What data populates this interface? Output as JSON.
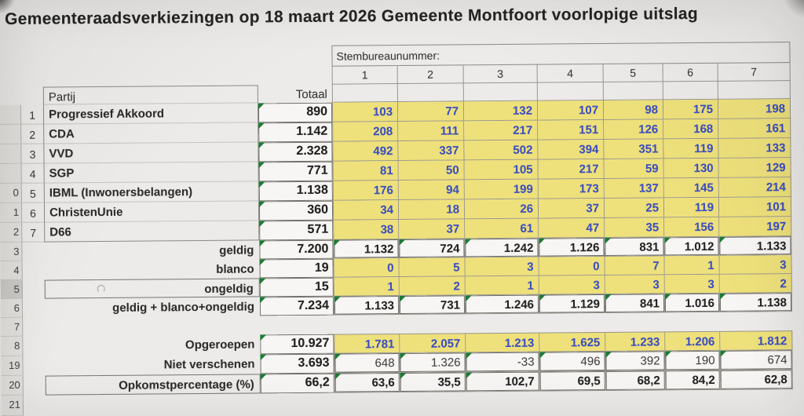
{
  "title": "Gemeenteraadsverkiezingen op 18 maart 2026 Gemeente Montfoort voorlopige uitslag",
  "header": {
    "stations_label": "Stembureaunummer:",
    "station_numbers": [
      "1",
      "2",
      "3",
      "4",
      "5",
      "6",
      "7"
    ],
    "partij": "Partij",
    "totaal": "Totaal"
  },
  "parties": [
    {
      "nr": "1",
      "name": "Progressief Akkoord",
      "totaal": "890",
      "stations": [
        "103",
        "77",
        "132",
        "107",
        "98",
        "175",
        "198"
      ]
    },
    {
      "nr": "2",
      "name": "CDA",
      "totaal": "1.142",
      "stations": [
        "208",
        "111",
        "217",
        "151",
        "126",
        "168",
        "161"
      ]
    },
    {
      "nr": "3",
      "name": "VVD",
      "totaal": "2.328",
      "stations": [
        "492",
        "337",
        "502",
        "394",
        "351",
        "119",
        "133"
      ]
    },
    {
      "nr": "4",
      "name": "SGP",
      "totaal": "771",
      "stations": [
        "81",
        "50",
        "105",
        "217",
        "59",
        "130",
        "129"
      ]
    },
    {
      "nr": "5",
      "name": "IBML (Inwonersbelangen)",
      "totaal": "1.138",
      "stations": [
        "176",
        "94",
        "199",
        "173",
        "137",
        "145",
        "214"
      ]
    },
    {
      "nr": "6",
      "name": "ChristenUnie",
      "totaal": "360",
      "stations": [
        "34",
        "18",
        "26",
        "37",
        "25",
        "119",
        "101"
      ]
    },
    {
      "nr": "7",
      "name": "D66",
      "totaal": "571",
      "stations": [
        "38",
        "37",
        "61",
        "47",
        "35",
        "156",
        "197"
      ]
    }
  ],
  "summary": [
    {
      "label": "geldig",
      "totaal": "7.200",
      "stations": [
        "1.132",
        "724",
        "1.242",
        "1.126",
        "831",
        "1.012",
        "1.133"
      ],
      "style": "white"
    },
    {
      "label": "blanco",
      "totaal": "19",
      "stations": [
        "0",
        "5",
        "3",
        "0",
        "7",
        "1",
        "3"
      ],
      "style": "yellow"
    },
    {
      "label": "ongeldig",
      "totaal": "15",
      "stations": [
        "1",
        "2",
        "1",
        "3",
        "3",
        "3",
        "2"
      ],
      "style": "yellow",
      "boxed": true,
      "cursor": true
    },
    {
      "label": "geldig + blanco+ongeldig",
      "totaal": "7.234",
      "stations": [
        "1.133",
        "731",
        "1.246",
        "1.129",
        "841",
        "1.016",
        "1.138"
      ],
      "style": "white"
    }
  ],
  "turnout": [
    {
      "label": "Opgeroepen",
      "totaal": "10.927",
      "stations": [
        "1.781",
        "2.057",
        "1.213",
        "1.625",
        "1.233",
        "1.206",
        "1.812"
      ],
      "style": "yellow"
    },
    {
      "label": "Niet verschenen",
      "totaal": "3.693",
      "stations": [
        "648",
        "1.326",
        "-33",
        "496",
        "392",
        "190",
        "674"
      ],
      "style": "white",
      "weight": "regular"
    },
    {
      "label": "Opkomstpercentage (%)",
      "totaal": "66,2",
      "stations": [
        "63,6",
        "35,5",
        "102,7",
        "69,5",
        "68,2",
        "84,2",
        "62,8"
      ],
      "style": "white",
      "boxed": true,
      "flags": [
        true,
        true,
        true,
        false,
        false,
        false,
        false
      ]
    }
  ],
  "row_numbers": {
    "parties": [
      "",
      "",
      "",
      "",
      "0",
      "1",
      "2"
    ],
    "summary": [
      "3",
      "4",
      "5",
      "6"
    ],
    "empty": "7",
    "turnout": [
      "8",
      "19",
      "20"
    ],
    "below": "21",
    "selected": "5"
  },
  "icons": {
    "cell_flag": "error-triangle-icon",
    "cursor": "busy-cursor-icon"
  },
  "colors": {
    "highlight_yellow": "#eee17b",
    "value_blue": "#3b4ec4",
    "flag_green": "#1d7a35",
    "sheet_background": "#edebe9"
  }
}
